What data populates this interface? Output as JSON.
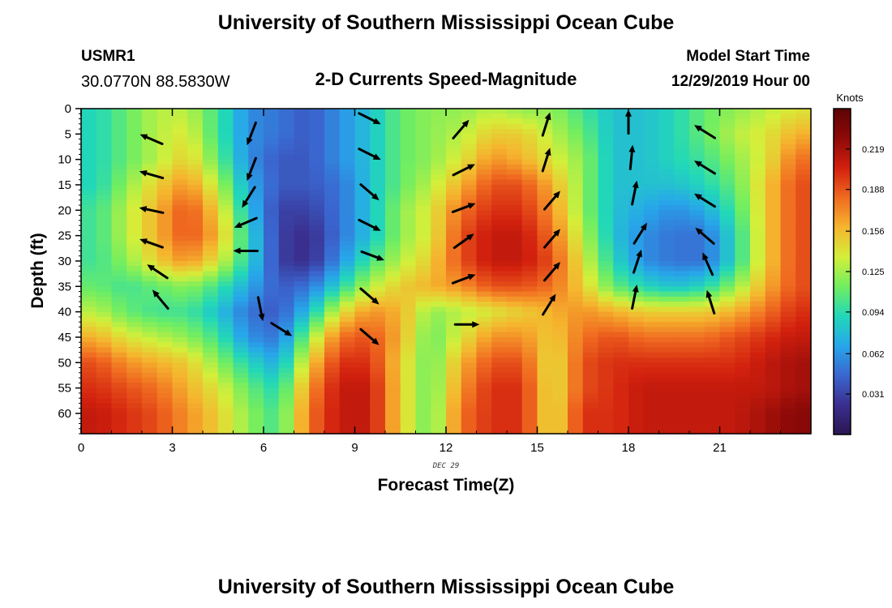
{
  "page": {
    "title": "University of Southern Mississippi Ocean Cube",
    "station": "USMR1",
    "coords": "30.0770N  88.5830W",
    "subtitle": "2-D Currents Speed-Magnitude",
    "start_label": "Model Start Time",
    "start_value": "12/29/2019 Hour 00",
    "date_tag": "DEC 29",
    "repeat_title": "University of Southern Mississippi Ocean Cube"
  },
  "colors": {
    "scale": [
      "#2a1650",
      "#3a2f8f",
      "#3a67d0",
      "#27a6ea",
      "#22d8b8",
      "#72ee60",
      "#d4ef3a",
      "#f5b52e",
      "#f06a20",
      "#d2200e",
      "#8e0a08",
      "#5c0404"
    ],
    "arrow": "#000000"
  },
  "chart_data": {
    "type": "heatmap",
    "title": "2-D Currents Speed-Magnitude",
    "xlabel": "Forecast Time(Z)",
    "ylabel": "Depth (ft)",
    "xlim": [
      0,
      23
    ],
    "ylim": [
      0,
      64
    ],
    "y_inverted": true,
    "x_ticks": [
      0,
      3,
      6,
      9,
      12,
      15,
      18,
      21
    ],
    "y_ticks": [
      0,
      5,
      10,
      15,
      20,
      25,
      30,
      35,
      40,
      45,
      50,
      55,
      60
    ],
    "colorbar": {
      "label": "Knots",
      "min": 0.0,
      "max": 0.25,
      "ticks": [
        0.031,
        0.062,
        0.094,
        0.125,
        0.156,
        0.188,
        0.219
      ]
    },
    "hours": [
      0,
      1,
      2,
      3,
      4,
      5,
      6,
      7,
      8,
      9,
      10,
      11,
      12,
      13,
      14,
      15,
      16,
      17,
      18,
      19,
      20,
      21,
      22,
      23
    ],
    "depths": [
      0,
      5,
      10,
      15,
      20,
      25,
      30,
      35,
      40,
      45,
      50,
      55,
      60,
      64
    ],
    "speed": [
      [
        0.09,
        0.11,
        0.13,
        0.13,
        0.1,
        0.06,
        0.05,
        0.04,
        0.06,
        0.08,
        0.11,
        0.12,
        0.12,
        0.13,
        0.12,
        0.12,
        0.1,
        0.08,
        0.08,
        0.09,
        0.11,
        0.12,
        0.13,
        0.14
      ],
      [
        0.09,
        0.11,
        0.13,
        0.14,
        0.1,
        0.06,
        0.05,
        0.04,
        0.06,
        0.08,
        0.11,
        0.12,
        0.13,
        0.15,
        0.15,
        0.13,
        0.11,
        0.08,
        0.08,
        0.09,
        0.11,
        0.13,
        0.14,
        0.16
      ],
      [
        0.09,
        0.11,
        0.13,
        0.15,
        0.11,
        0.06,
        0.04,
        0.04,
        0.06,
        0.08,
        0.11,
        0.12,
        0.14,
        0.17,
        0.16,
        0.14,
        0.12,
        0.08,
        0.08,
        0.09,
        0.1,
        0.12,
        0.14,
        0.18
      ],
      [
        0.09,
        0.12,
        0.15,
        0.17,
        0.13,
        0.07,
        0.04,
        0.04,
        0.05,
        0.08,
        0.11,
        0.13,
        0.16,
        0.19,
        0.19,
        0.16,
        0.12,
        0.08,
        0.08,
        0.08,
        0.09,
        0.11,
        0.15,
        0.19
      ],
      [
        0.1,
        0.13,
        0.16,
        0.19,
        0.15,
        0.08,
        0.03,
        0.03,
        0.05,
        0.08,
        0.12,
        0.14,
        0.18,
        0.2,
        0.2,
        0.17,
        0.12,
        0.08,
        0.07,
        0.06,
        0.07,
        0.1,
        0.15,
        0.19
      ],
      [
        0.1,
        0.13,
        0.16,
        0.19,
        0.16,
        0.09,
        0.03,
        0.02,
        0.05,
        0.08,
        0.12,
        0.14,
        0.19,
        0.21,
        0.21,
        0.18,
        0.13,
        0.08,
        0.06,
        0.05,
        0.05,
        0.09,
        0.15,
        0.19
      ],
      [
        0.1,
        0.12,
        0.15,
        0.17,
        0.14,
        0.09,
        0.03,
        0.02,
        0.06,
        0.1,
        0.13,
        0.15,
        0.19,
        0.21,
        0.21,
        0.19,
        0.14,
        0.09,
        0.06,
        0.05,
        0.05,
        0.09,
        0.15,
        0.19
      ],
      [
        0.11,
        0.1,
        0.11,
        0.12,
        0.1,
        0.07,
        0.04,
        0.05,
        0.09,
        0.13,
        0.15,
        0.16,
        0.17,
        0.19,
        0.19,
        0.18,
        0.15,
        0.11,
        0.09,
        0.08,
        0.09,
        0.12,
        0.16,
        0.19
      ],
      [
        0.13,
        0.11,
        0.1,
        0.1,
        0.08,
        0.05,
        0.04,
        0.08,
        0.14,
        0.17,
        0.16,
        0.12,
        0.13,
        0.14,
        0.15,
        0.16,
        0.17,
        0.16,
        0.15,
        0.15,
        0.15,
        0.16,
        0.18,
        0.2
      ],
      [
        0.16,
        0.14,
        0.13,
        0.12,
        0.1,
        0.06,
        0.05,
        0.12,
        0.18,
        0.19,
        0.16,
        0.11,
        0.14,
        0.17,
        0.17,
        0.15,
        0.18,
        0.19,
        0.18,
        0.18,
        0.18,
        0.19,
        0.2,
        0.21
      ],
      [
        0.19,
        0.17,
        0.16,
        0.15,
        0.12,
        0.09,
        0.07,
        0.15,
        0.2,
        0.2,
        0.15,
        0.11,
        0.16,
        0.19,
        0.19,
        0.14,
        0.19,
        0.2,
        0.2,
        0.2,
        0.2,
        0.2,
        0.21,
        0.22
      ],
      [
        0.2,
        0.19,
        0.18,
        0.16,
        0.14,
        0.11,
        0.09,
        0.17,
        0.21,
        0.21,
        0.15,
        0.11,
        0.17,
        0.2,
        0.2,
        0.14,
        0.19,
        0.2,
        0.21,
        0.21,
        0.21,
        0.21,
        0.21,
        0.22
      ],
      [
        0.21,
        0.2,
        0.19,
        0.17,
        0.15,
        0.12,
        0.1,
        0.18,
        0.21,
        0.21,
        0.15,
        0.11,
        0.18,
        0.2,
        0.2,
        0.14,
        0.2,
        0.2,
        0.21,
        0.21,
        0.21,
        0.21,
        0.22,
        0.23
      ],
      [
        0.21,
        0.2,
        0.19,
        0.17,
        0.15,
        0.12,
        0.1,
        0.18,
        0.21,
        0.21,
        0.15,
        0.11,
        0.18,
        0.2,
        0.2,
        0.14,
        0.2,
        0.2,
        0.21,
        0.21,
        0.21,
        0.21,
        0.22,
        0.23
      ]
    ],
    "vectors": [
      {
        "t": 2.3,
        "d": 6,
        "u": -0.7,
        "v": 0.3
      },
      {
        "t": 2.3,
        "d": 13,
        "u": -0.7,
        "v": 0.2
      },
      {
        "t": 2.3,
        "d": 20,
        "u": -0.7,
        "v": 0.15
      },
      {
        "t": 2.3,
        "d": 26.5,
        "u": -0.7,
        "v": 0.25
      },
      {
        "t": 2.5,
        "d": 32,
        "u": -0.6,
        "v": 0.4
      },
      {
        "t": 2.6,
        "d": 37.5,
        "u": -0.5,
        "v": 0.6
      },
      {
        "t": 5.6,
        "d": 5,
        "u": -0.35,
        "v": -0.9
      },
      {
        "t": 5.6,
        "d": 12,
        "u": -0.35,
        "v": -0.9
      },
      {
        "t": 5.5,
        "d": 17.5,
        "u": -0.5,
        "v": -0.8
      },
      {
        "t": 5.4,
        "d": 22.5,
        "u": -0.7,
        "v": -0.3
      },
      {
        "t": 5.4,
        "d": 28,
        "u": -0.8,
        "v": 0.0
      },
      {
        "t": 5.9,
        "d": 39.5,
        "u": 0.2,
        "v": -1.0
      },
      {
        "t": 6.6,
        "d": 43.5,
        "u": 0.8,
        "v": -0.5
      },
      {
        "t": 9.5,
        "d": 2,
        "u": 0.8,
        "v": -0.4
      },
      {
        "t": 9.5,
        "d": 9,
        "u": 0.8,
        "v": -0.4
      },
      {
        "t": 9.5,
        "d": 16.5,
        "u": 0.7,
        "v": -0.6
      },
      {
        "t": 9.5,
        "d": 23,
        "u": 0.8,
        "v": -0.4
      },
      {
        "t": 9.6,
        "d": 29,
        "u": 0.8,
        "v": -0.3
      },
      {
        "t": 9.5,
        "d": 37,
        "u": 0.7,
        "v": -0.6
      },
      {
        "t": 9.5,
        "d": 45,
        "u": 0.7,
        "v": -0.6
      },
      {
        "t": 12.5,
        "d": 4,
        "u": 0.6,
        "v": 0.7
      },
      {
        "t": 12.6,
        "d": 12,
        "u": 0.8,
        "v": 0.4
      },
      {
        "t": 12.6,
        "d": 19.5,
        "u": 0.8,
        "v": 0.3
      },
      {
        "t": 12.6,
        "d": 26,
        "u": 0.7,
        "v": 0.5
      },
      {
        "t": 12.6,
        "d": 33.5,
        "u": 0.8,
        "v": 0.3
      },
      {
        "t": 12.7,
        "d": 42.5,
        "u": 0.8,
        "v": 0.0
      },
      {
        "t": 15.3,
        "d": 3,
        "u": 0.3,
        "v": 0.95
      },
      {
        "t": 15.3,
        "d": 10,
        "u": 0.3,
        "v": 0.95
      },
      {
        "t": 15.5,
        "d": 18,
        "u": 0.6,
        "v": 0.7
      },
      {
        "t": 15.5,
        "d": 25.5,
        "u": 0.6,
        "v": 0.7
      },
      {
        "t": 15.5,
        "d": 32,
        "u": 0.6,
        "v": 0.7
      },
      {
        "t": 15.4,
        "d": 38.5,
        "u": 0.5,
        "v": 0.8
      },
      {
        "t": 18.0,
        "d": 2.5,
        "u": 0.0,
        "v": 1.0
      },
      {
        "t": 18.1,
        "d": 9.5,
        "u": 0.1,
        "v": 1.0
      },
      {
        "t": 18.2,
        "d": 16.5,
        "u": 0.2,
        "v": 1.0
      },
      {
        "t": 18.4,
        "d": 24.5,
        "u": 0.5,
        "v": 0.8
      },
      {
        "t": 18.3,
        "d": 30,
        "u": 0.3,
        "v": 0.9
      },
      {
        "t": 18.2,
        "d": 37,
        "u": 0.2,
        "v": 1.0
      },
      {
        "t": 20.5,
        "d": 4.5,
        "u": -0.8,
        "v": 0.5
      },
      {
        "t": 20.5,
        "d": 11.5,
        "u": -0.8,
        "v": 0.5
      },
      {
        "t": 20.5,
        "d": 18,
        "u": -0.8,
        "v": 0.5
      },
      {
        "t": 20.5,
        "d": 25,
        "u": -0.7,
        "v": 0.6
      },
      {
        "t": 20.6,
        "d": 30.5,
        "u": -0.4,
        "v": 0.9
      },
      {
        "t": 20.7,
        "d": 38,
        "u": -0.3,
        "v": 0.95
      }
    ]
  }
}
